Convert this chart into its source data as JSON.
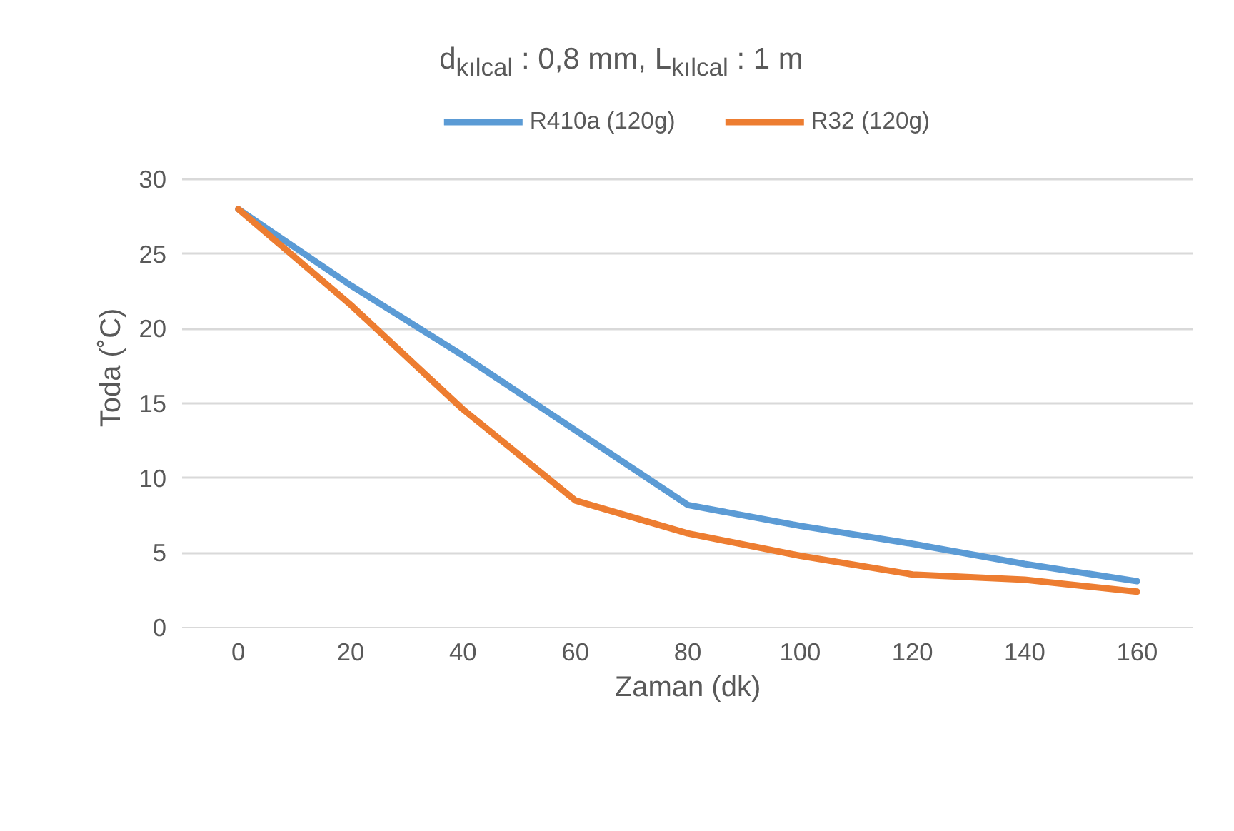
{
  "chart_data": {
    "type": "line",
    "title": "d$_{kılcal}$ : 0,8 mm, L$_{kılcal}$ : 1 m",
    "xlabel": "Zaman (dk)",
    "ylabel": "Toda (˚C)",
    "categories": [
      "0",
      "20",
      "40",
      "60",
      "80",
      "100",
      "120",
      "140",
      "160"
    ],
    "series": [
      {
        "name": "R410a (120g)",
        "color": "#5b9bd5",
        "values": [
          28.0,
          22.9,
          18.2,
          13.2,
          8.2,
          6.8,
          5.6,
          4.25,
          3.1
        ]
      },
      {
        "name": "R32 (120g)",
        "color": "#ed7d31",
        "values": [
          28.0,
          21.6,
          14.6,
          8.5,
          6.3,
          4.8,
          3.55,
          3.2,
          2.4
        ]
      }
    ],
    "ylim": [
      0,
      30
    ],
    "yticks": [
      0,
      5,
      10,
      15,
      20,
      25,
      30
    ],
    "grid": "y",
    "legend": "top",
    "marker": "none",
    "line_style": "solid"
  }
}
